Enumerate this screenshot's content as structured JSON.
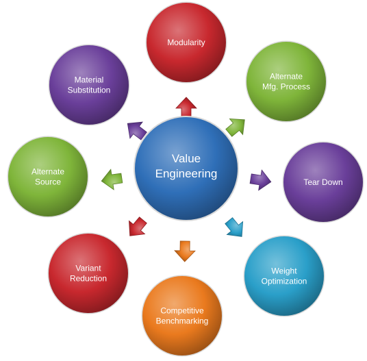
{
  "center": {
    "lines": [
      "Value",
      "Engineering"
    ],
    "color": "#2f6fb8"
  },
  "nodes": [
    {
      "id": "modularity",
      "lines": [
        "Modularity"
      ],
      "color": "#c8282e"
    },
    {
      "id": "alternate-mfg-process",
      "lines": [
        "Alternate",
        "Mfg. Process"
      ],
      "color": "#7fb53a"
    },
    {
      "id": "tear-down",
      "lines": [
        "Tear Down"
      ],
      "color": "#6a3f9a"
    },
    {
      "id": "weight-optimization",
      "lines": [
        "Weight",
        "Optimization"
      ],
      "color": "#2a9fc9"
    },
    {
      "id": "competitive-benchmarking",
      "lines": [
        "Competitive",
        "Benchmarking"
      ],
      "color": "#ea7a1e"
    },
    {
      "id": "variant-reduction",
      "lines": [
        "Variant",
        "Reduction"
      ],
      "color": "#c8282e"
    },
    {
      "id": "alternate-source",
      "lines": [
        "Alternate",
        "Source"
      ],
      "color": "#7fb53a"
    },
    {
      "id": "material-substitution",
      "lines": [
        "Material",
        "Substitution"
      ],
      "color": "#6a3f9a"
    }
  ],
  "arrow_colors": [
    "#c8282e",
    "#7fb53a",
    "#6a3f9a",
    "#2a9fc9",
    "#ea7a1e",
    "#c8282e",
    "#7fb53a",
    "#6a3f9a"
  ]
}
